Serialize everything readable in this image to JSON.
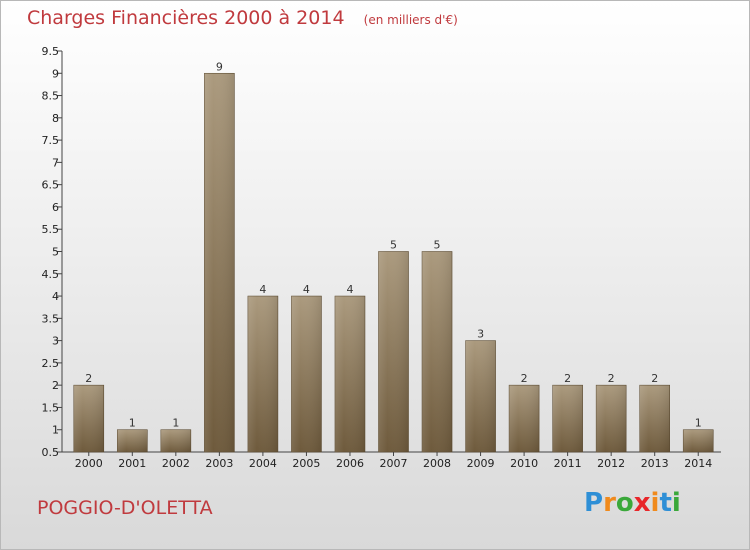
{
  "title": "Charges Financières 2000 à 2014",
  "unit_note": "(en milliers d'€)",
  "place": "POGGIO-D'OLETTA",
  "brand": {
    "letters": [
      "P",
      "r",
      "o",
      "x",
      "i",
      "t",
      "i"
    ],
    "colors": [
      "#2e8fd6",
      "#f08a1c",
      "#3aa83a",
      "#e8262a",
      "#f08a1c",
      "#2e8fd6",
      "#3aa83a"
    ]
  },
  "colors": {
    "title": "#c03a3e",
    "bar_top": "#ab9a7e",
    "bar_bottom": "#6e5a3c"
  },
  "chart_data": {
    "type": "bar",
    "categories": [
      "2000",
      "2001",
      "2002",
      "2003",
      "2004",
      "2005",
      "2006",
      "2007",
      "2008",
      "2009",
      "2010",
      "2011",
      "2012",
      "2013",
      "2014"
    ],
    "values": [
      2,
      1,
      1,
      9,
      4,
      4,
      4,
      5,
      5,
      3,
      2,
      2,
      2,
      2,
      1
    ],
    "value_labels": [
      "2",
      "1",
      "1",
      "9",
      "4",
      "4",
      "4",
      "5",
      "5",
      "3",
      "2",
      "2",
      "2",
      "2",
      "1"
    ],
    "yticks": [
      "0.5",
      "1",
      "1.5",
      "2",
      "2.5",
      "3",
      "3.5",
      "4",
      "4.5",
      "5",
      "5.5",
      "6",
      "6.5",
      "7",
      "7.5",
      "8",
      "8.5",
      "9",
      "9.5"
    ],
    "ylim": [
      0.5,
      9.5
    ],
    "grid": false,
    "legend": "none"
  }
}
